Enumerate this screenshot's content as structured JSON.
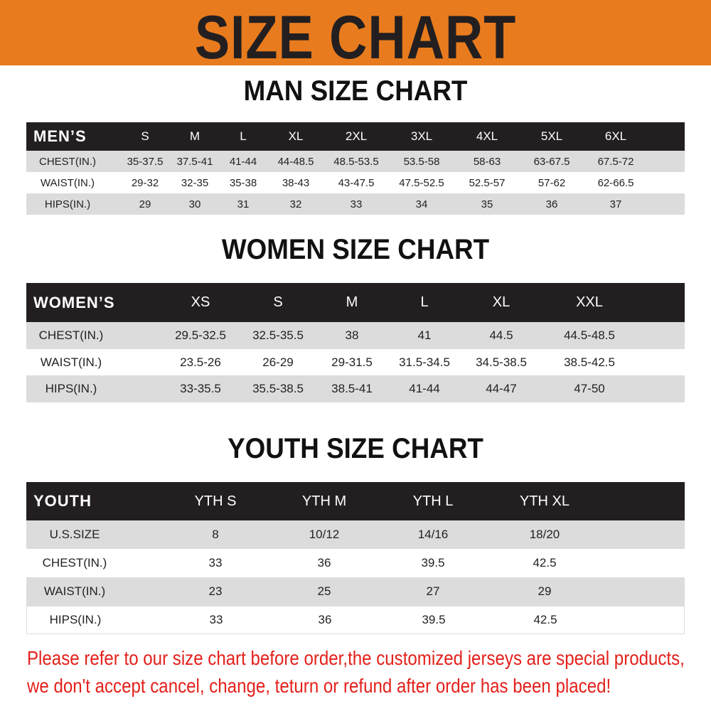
{
  "banner": {
    "title": "SIZE CHART",
    "color": "#e87b1e"
  },
  "men": {
    "title": "MAN SIZE CHART",
    "header_label": "MEN’S",
    "sizes": [
      "S",
      "M",
      "L",
      "XL",
      "2XL",
      "3XL",
      "4XL",
      "5XL",
      "6XL"
    ],
    "rows": [
      {
        "label": "CHEST(IN.)",
        "values": [
          "35-37.5",
          "37.5-41",
          "41-44",
          "44-48.5",
          "48.5-53.5",
          "53.5-58",
          "58-63",
          "63-67.5",
          "67.5-72"
        ]
      },
      {
        "label": "WAIST(IN.)",
        "values": [
          "29-32",
          "32-35",
          "35-38",
          "38-43",
          "43-47.5",
          "47.5-52.5",
          "52.5-57",
          "57-62",
          "62-66.5"
        ]
      },
      {
        "label": "HIPS(IN.)",
        "values": [
          "29",
          "30",
          "31",
          "32",
          "33",
          "34",
          "35",
          "36",
          "37"
        ]
      }
    ]
  },
  "women": {
    "title": "WOMEN SIZE CHART",
    "header_label": "WOMEN’S",
    "sizes": [
      "XS",
      "S",
      "M",
      "L",
      "XL",
      "XXL"
    ],
    "rows": [
      {
        "label": "CHEST(IN.)",
        "values": [
          "29.5-32.5",
          "32.5-35.5",
          "38",
          "41",
          "44.5",
          "44.5-48.5"
        ]
      },
      {
        "label": "WAIST(IN.)",
        "values": [
          "23.5-26",
          "26-29",
          "29-31.5",
          "31.5-34.5",
          "34.5-38.5",
          "38.5-42.5"
        ]
      },
      {
        "label": "HIPS(IN.)",
        "values": [
          "33-35.5",
          "35.5-38.5",
          "38.5-41",
          "41-44",
          "44-47",
          "47-50"
        ]
      }
    ]
  },
  "youth": {
    "title": "YOUTH SIZE CHART",
    "header_label": "YOUTH",
    "sizes": [
      "YTH S",
      "YTH M",
      "YTH L",
      "YTH XL"
    ],
    "rows": [
      {
        "label": "U.S.SIZE",
        "values": [
          "8",
          "10/12",
          "14/16",
          "18/20"
        ]
      },
      {
        "label": "CHEST(IN.)",
        "values": [
          "33",
          "36",
          "39.5",
          "42.5"
        ]
      },
      {
        "label": "WAIST(IN.)",
        "values": [
          "23",
          "25",
          "27",
          "29"
        ]
      },
      {
        "label": "HIPS(IN.)",
        "values": [
          "33",
          "36",
          "39.5",
          "42.5"
        ]
      }
    ]
  },
  "notice": {
    "line1": "Please refer to our size chart before order,the customized jerseys are special products,",
    "line2": "we don't accept cancel, change, teturn or refund after order has been placed!",
    "color": "#e3201b"
  }
}
